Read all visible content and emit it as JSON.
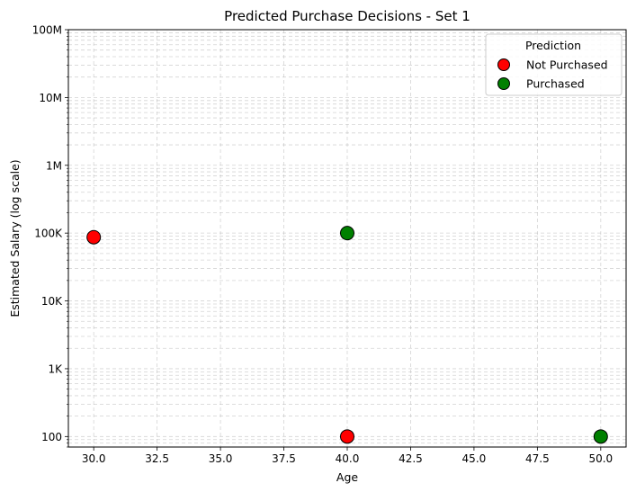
{
  "chart_data": {
    "type": "scatter",
    "title": "Predicted Purchase Decisions - Set 1",
    "xlabel": "Age",
    "ylabel": "Estimated Salary (log scale)",
    "xlim": [
      29.0,
      51.0
    ],
    "ylim": [
      70,
      100000000
    ],
    "yscale": "log",
    "grid": true,
    "x_ticks": [
      30.0,
      32.5,
      35.0,
      37.5,
      40.0,
      42.5,
      45.0,
      47.5,
      50.0
    ],
    "x_tick_labels": [
      "30.0",
      "32.5",
      "35.0",
      "37.5",
      "40.0",
      "42.5",
      "45.0",
      "47.5",
      "50.0"
    ],
    "y_ticks": [
      100,
      1000,
      10000,
      100000,
      1000000,
      10000000,
      100000000
    ],
    "y_tick_labels": [
      "100",
      "1K",
      "10K",
      "100K",
      "1M",
      "10M",
      "100M"
    ],
    "legend": {
      "title": "Prediction",
      "placement": "top-right",
      "entries": [
        "Not Purchased",
        "Purchased"
      ]
    },
    "series": [
      {
        "name": "Not Purchased",
        "color": "#ff0000",
        "points": [
          {
            "x": 30,
            "y": 87000
          },
          {
            "x": 40,
            "y": 100
          }
        ]
      },
      {
        "name": "Purchased",
        "color": "#008000",
        "points": [
          {
            "x": 40,
            "y": 100000
          },
          {
            "x": 50,
            "y": 100
          }
        ]
      }
    ]
  }
}
